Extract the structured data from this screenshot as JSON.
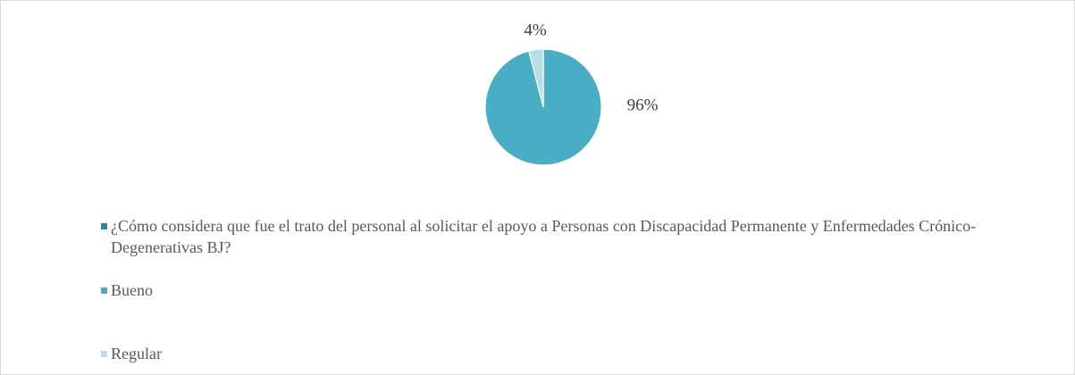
{
  "chart_data": {
    "type": "pie",
    "categories": [
      "¿Cómo considera que fue el trato del personal al solicitar el apoyo a Personas con Discapacidad Permanente y Enfermedades Crónico-Degenerativas BJ?",
      "Bueno",
      "Regular"
    ],
    "values": [
      null,
      96,
      4
    ],
    "value_labels": [
      null,
      "96%",
      "4%"
    ],
    "colors": [
      "#31859c",
      "#4bacc6",
      "#b7dee8"
    ],
    "legend": "bottom"
  }
}
